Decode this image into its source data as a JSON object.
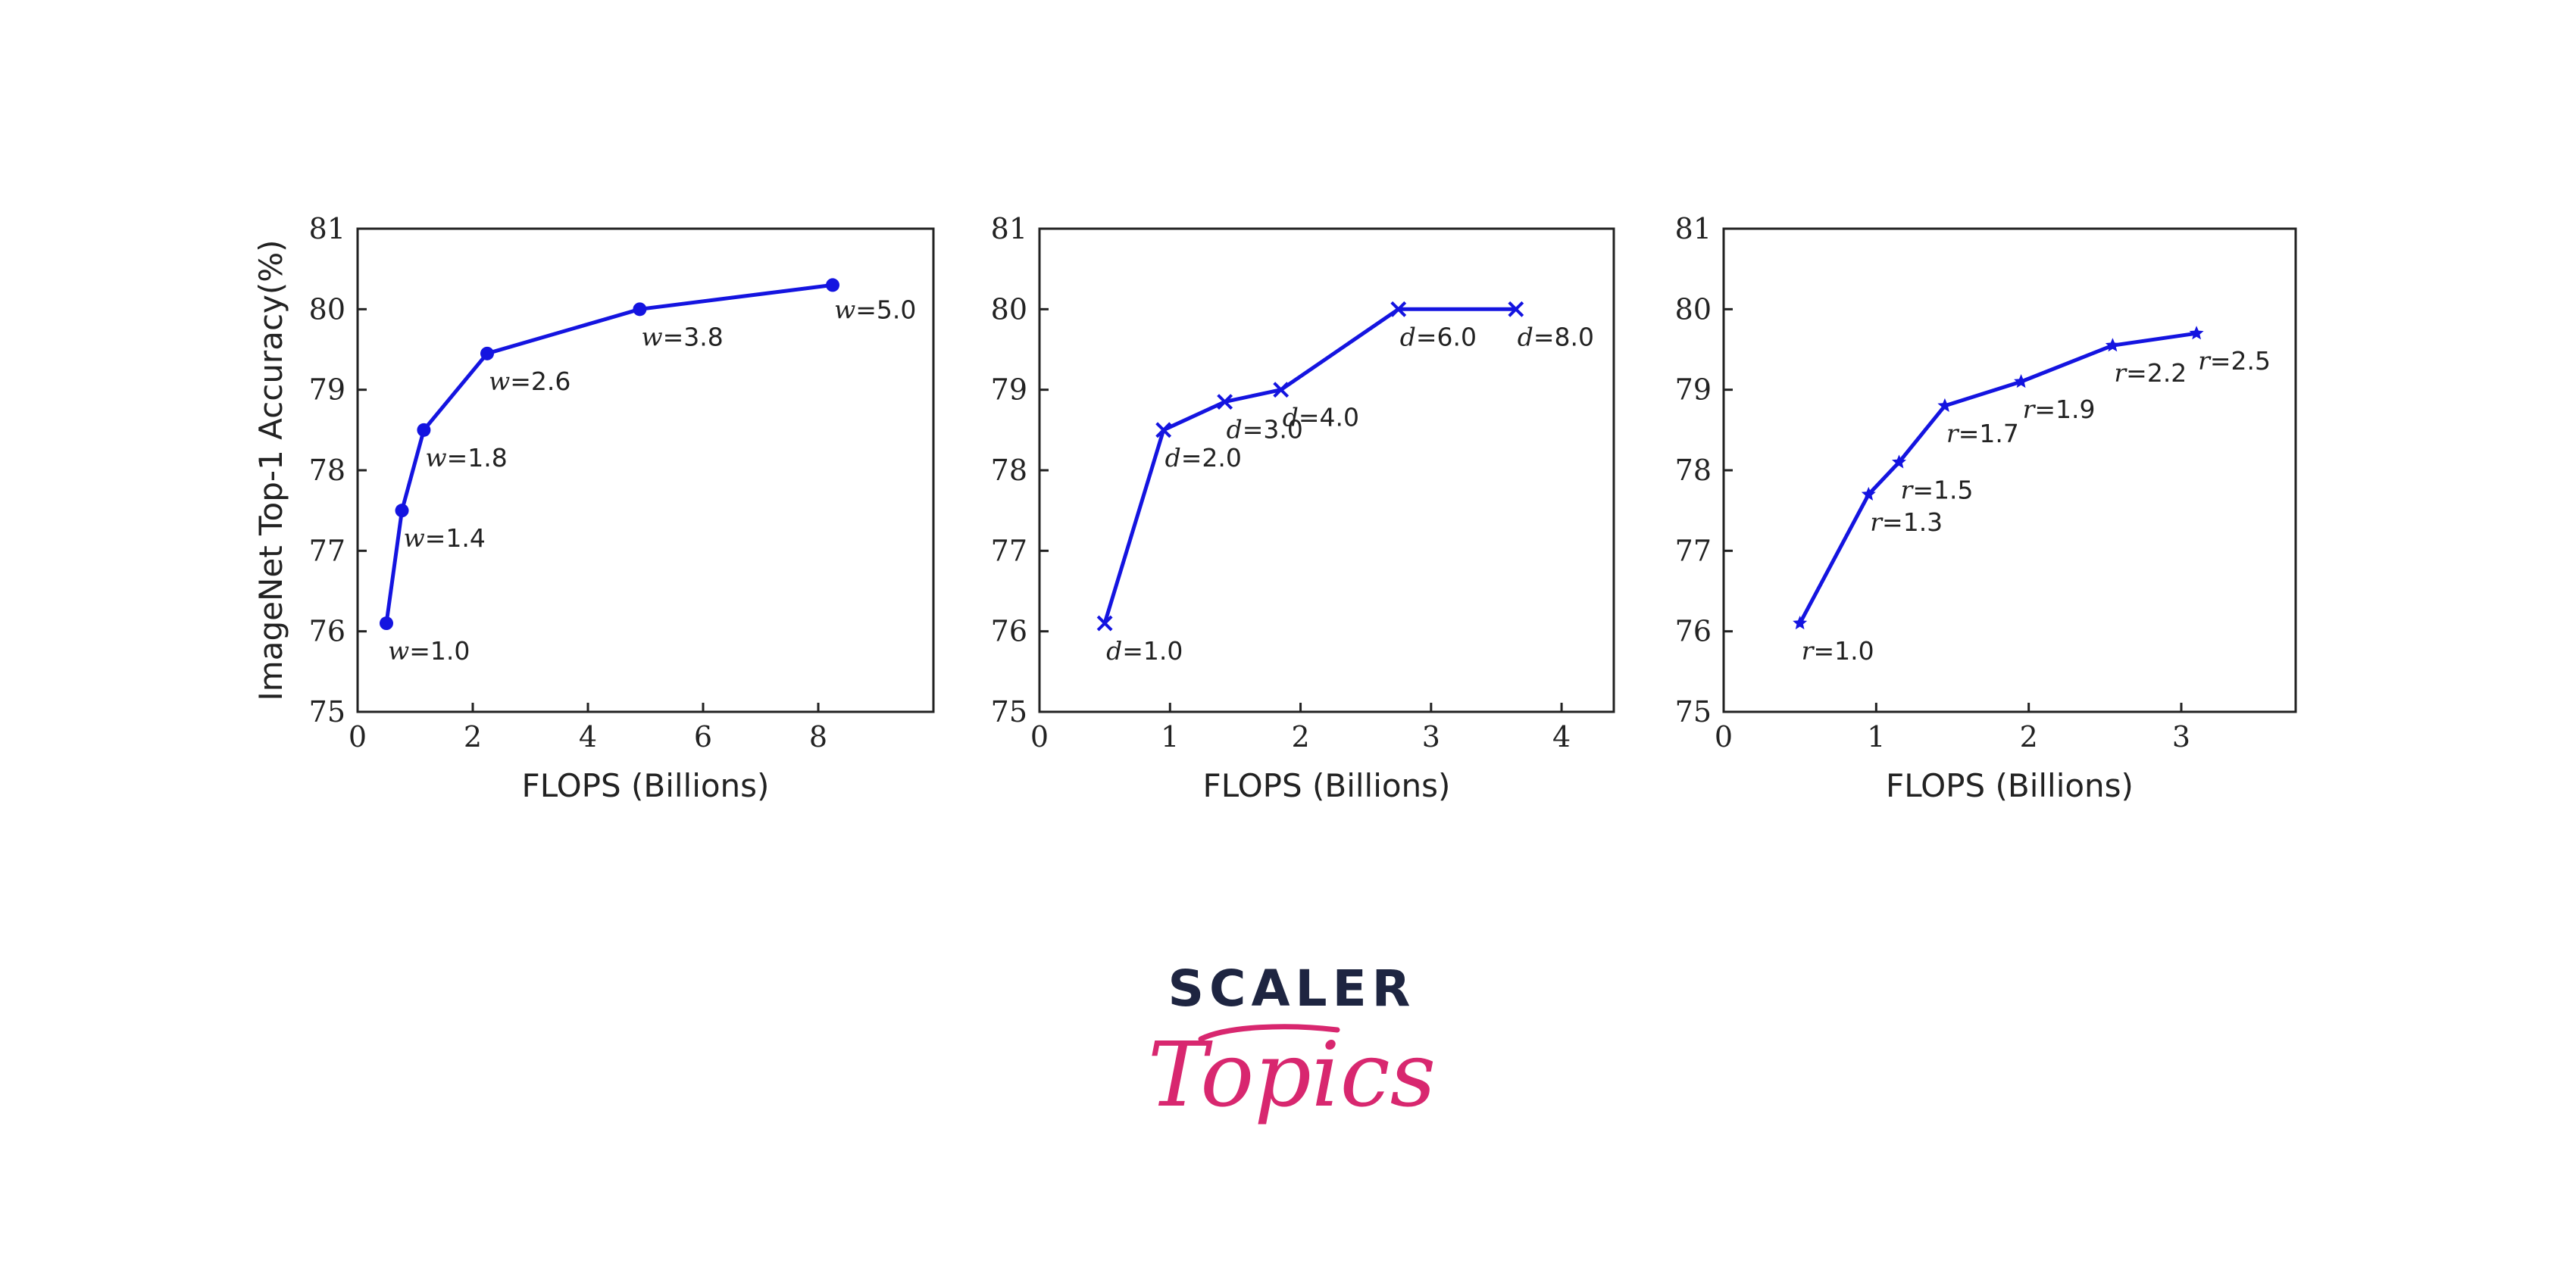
{
  "colors": {
    "series": "#1414e0",
    "axis": "#222222",
    "logo_dark": "#1e2541",
    "logo_pink": "#d8276f"
  },
  "logo": {
    "top": "SCALER",
    "bottom": "Topics"
  },
  "chart_data": [
    {
      "type": "line",
      "marker": "circle",
      "xlabel": "FLOPS (Billions)",
      "ylabel": "ImageNet Top-1 Accuracy(%)",
      "xlim": [
        0,
        10
      ],
      "ylim": [
        75,
        81
      ],
      "xticks": [
        0,
        2,
        4,
        6,
        8
      ],
      "yticks": [
        75,
        76,
        77,
        78,
        79,
        80,
        81
      ],
      "series": [
        {
          "x": [
            0.5,
            0.77,
            1.15,
            2.25,
            4.9,
            8.25
          ],
          "y": [
            76.1,
            77.5,
            78.5,
            79.45,
            80.0,
            80.3
          ],
          "labels": [
            {
              "var": "w",
              "text": "=1.0"
            },
            {
              "var": "w",
              "text": "=1.4"
            },
            {
              "var": "w",
              "text": "=1.8"
            },
            {
              "var": "w",
              "text": "=2.6"
            },
            {
              "var": "w",
              "text": "=3.8"
            },
            {
              "var": "w",
              "text": "=5.0"
            }
          ]
        }
      ]
    },
    {
      "type": "line",
      "marker": "x",
      "xlabel": "FLOPS (Billions)",
      "ylabel": "",
      "xlim": [
        0,
        4.4
      ],
      "ylim": [
        75,
        81
      ],
      "xticks": [
        0,
        1,
        2,
        3,
        4
      ],
      "yticks": [
        75,
        76,
        77,
        78,
        79,
        80,
        81
      ],
      "series": [
        {
          "x": [
            0.5,
            0.95,
            1.42,
            1.85,
            2.75,
            3.65
          ],
          "y": [
            76.1,
            78.5,
            78.85,
            79.0,
            80.0,
            80.0
          ],
          "labels": [
            {
              "var": "d",
              "text": "=1.0"
            },
            {
              "var": "d",
              "text": "=2.0"
            },
            {
              "var": "d",
              "text": "=3.0"
            },
            {
              "var": "d",
              "text": "=4.0"
            },
            {
              "var": "d",
              "text": "=6.0"
            },
            {
              "var": "d",
              "text": "=8.0"
            }
          ]
        }
      ]
    },
    {
      "type": "line",
      "marker": "star",
      "xlabel": "FLOPS (Billions)",
      "ylabel": "",
      "xlim": [
        0,
        3.75
      ],
      "ylim": [
        75,
        81
      ],
      "xticks": [
        0,
        1,
        2,
        3
      ],
      "yticks": [
        75,
        76,
        77,
        78,
        79,
        80,
        81
      ],
      "series": [
        {
          "x": [
            0.5,
            0.95,
            1.15,
            1.45,
            1.95,
            2.55,
            3.1
          ],
          "y": [
            76.1,
            77.7,
            78.1,
            78.8,
            79.1,
            79.55,
            79.7
          ],
          "labels": [
            {
              "var": "r",
              "text": "=1.0"
            },
            {
              "var": "r",
              "text": "=1.3"
            },
            {
              "var": "r",
              "text": "=1.5"
            },
            {
              "var": "r",
              "text": "=1.7"
            },
            {
              "var": "r",
              "text": "=1.9"
            },
            {
              "var": "r",
              "text": "=2.2"
            },
            {
              "var": "r",
              "text": "=2.5"
            }
          ]
        }
      ]
    }
  ]
}
